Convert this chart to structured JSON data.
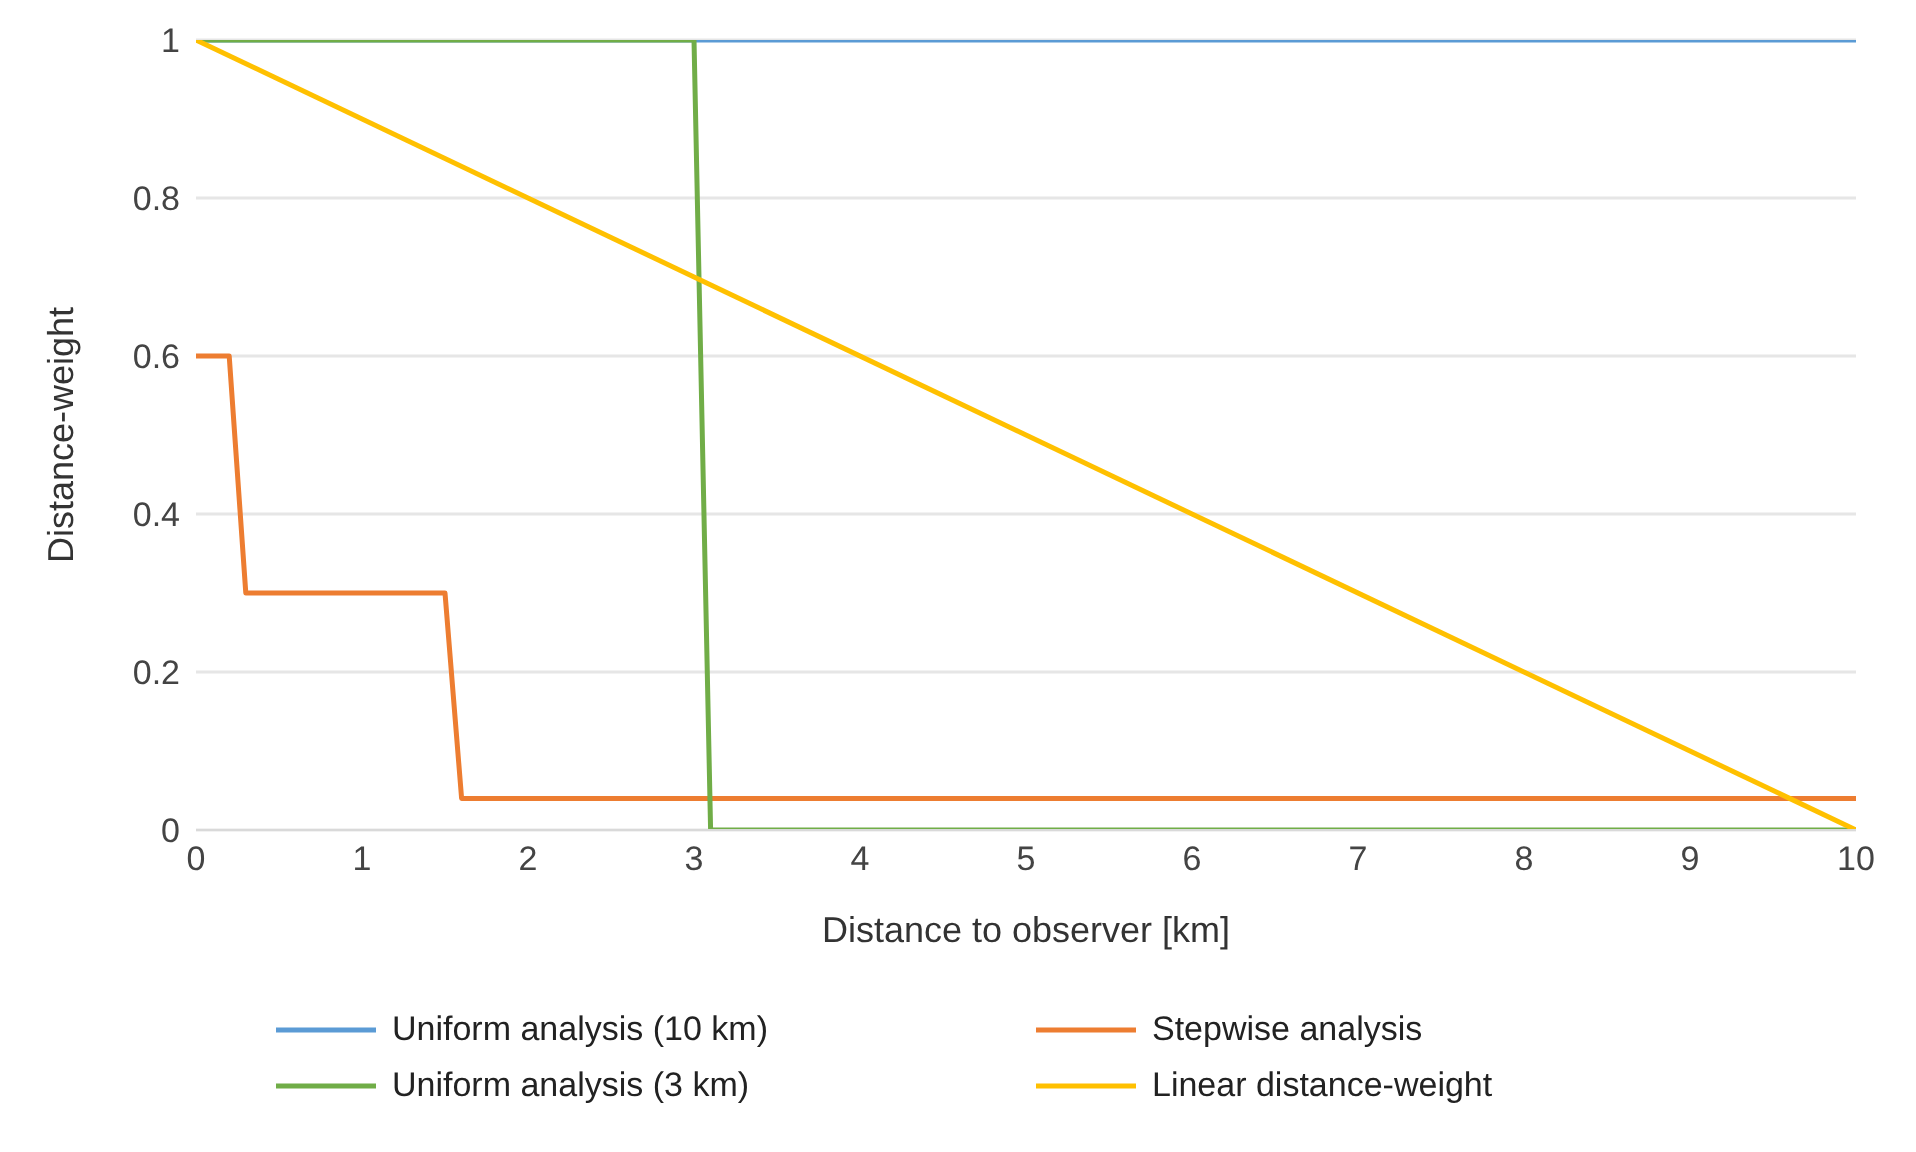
{
  "chart_data": {
    "type": "line",
    "xlabel": "Distance to observer [km]",
    "ylabel": "Distance-weight",
    "xlim": [
      0,
      10
    ],
    "xticks": [
      0,
      1,
      2,
      3,
      4,
      5,
      6,
      7,
      8,
      9,
      10
    ],
    "ylim": [
      0,
      1
    ],
    "yticks": [
      0,
      {
        "value": 0.2,
        "label": "0.2"
      },
      {
        "value": 0.4,
        "label": "0.4"
      },
      {
        "value": 0.6,
        "label": "0.6"
      },
      {
        "value": 0.8,
        "label": "0.8"
      },
      1
    ],
    "grid": "y",
    "legend": "bottom",
    "marker": "none",
    "line_style": "solid",
    "series": [
      {
        "name": "Uniform analysis (10 km)",
        "color": "#5b9bd5",
        "x": [
          0,
          10
        ],
        "values": [
          1,
          1
        ]
      },
      {
        "name": "Stepwise analysis",
        "color": "#ed7d31",
        "x": [
          0,
          0.2,
          0.3,
          1.5,
          1.6,
          10
        ],
        "values": [
          0.6,
          0.6,
          0.3,
          0.3,
          0.04,
          0.04
        ]
      },
      {
        "name": "Uniform analysis (3 km)",
        "color": "#70ad47",
        "x": [
          0,
          3,
          3.1,
          10
        ],
        "values": [
          1,
          1,
          0,
          0
        ]
      },
      {
        "name": "Linear distance-weight",
        "color": "#ffc000",
        "x": [
          0,
          10
        ],
        "values": [
          1,
          0
        ]
      }
    ]
  }
}
